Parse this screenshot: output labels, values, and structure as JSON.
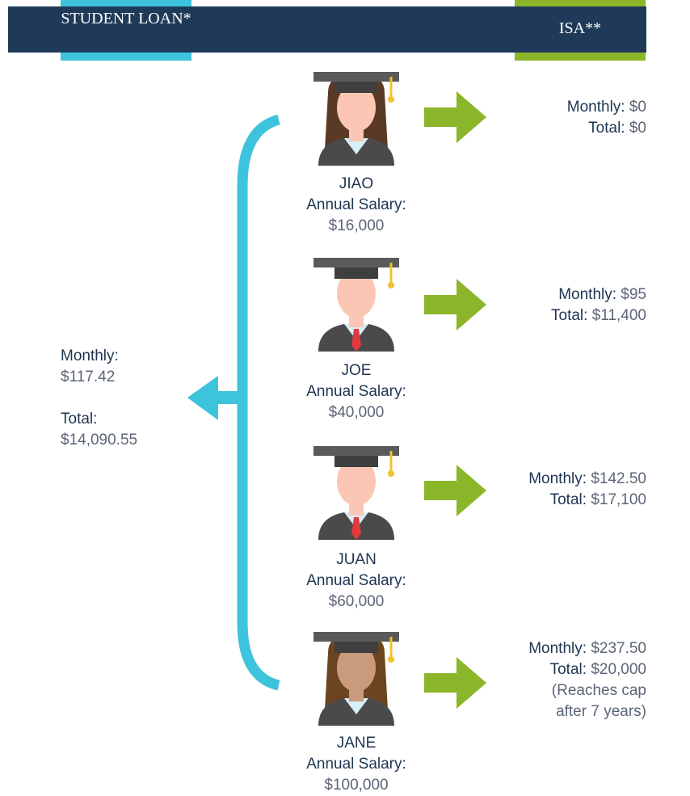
{
  "header": {
    "left": "STUDENT LOAN*",
    "right": "ISA**"
  },
  "student_loan": {
    "monthly_label": "Monthly:",
    "monthly": "$117.42",
    "total_label": "Total:",
    "total": "$14,090.55"
  },
  "people": [
    {
      "name": "JIAO",
      "salary_label": "Annual Salary:",
      "salary": "$16,000",
      "isa": {
        "monthly_label": "Monthly:",
        "monthly": "$0",
        "total_label": "Total:",
        "total": "$0"
      }
    },
    {
      "name": "JOE",
      "salary_label": "Annual Salary:",
      "salary": "$40,000",
      "isa": {
        "monthly_label": "Monthly:",
        "monthly": "$95",
        "total_label": "Total:",
        "total": "$11,400"
      }
    },
    {
      "name": "JUAN",
      "salary_label": "Annual Salary:",
      "salary": "$60,000",
      "isa": {
        "monthly_label": "Monthly:",
        "monthly": "$142.50",
        "total_label": "Total:",
        "total": "$17,100"
      }
    },
    {
      "name": "JANE",
      "salary_label": "Annual Salary:",
      "salary": "$100,000",
      "isa": {
        "monthly_label": "Monthly:",
        "monthly": "$237.50",
        "total_label": "Total:",
        "total": "$20,000",
        "note": [
          "(Reaches cap",
          "after 7 years)"
        ]
      }
    }
  ]
}
